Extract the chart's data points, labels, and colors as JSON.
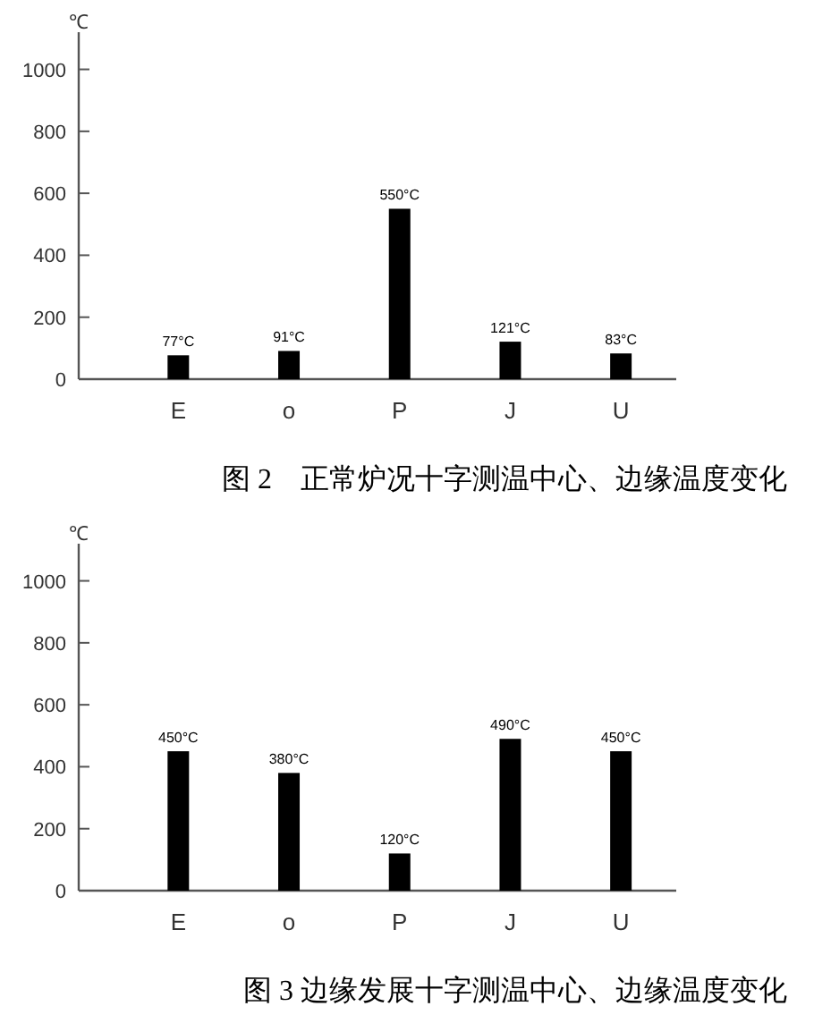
{
  "chart_data": [
    {
      "type": "bar",
      "title": "图 2　正常炉况十字测温中心、边缘温度变化",
      "ylabel": "℃",
      "categories": [
        "E",
        "o",
        "P",
        "J",
        "U"
      ],
      "values": [
        77,
        91,
        550,
        121,
        83
      ],
      "value_labels": [
        "77°C",
        "91°C",
        "550°C",
        "121°C",
        "83°C"
      ],
      "color": "#000000",
      "ylim": [
        0,
        1120
      ],
      "yticks": [
        0,
        200,
        400,
        600,
        800,
        1000
      ],
      "grid": false
    },
    {
      "type": "bar",
      "title": "图 3 边缘发展十字测温中心、边缘温度变化",
      "ylabel": "℃",
      "categories": [
        "E",
        "o",
        "P",
        "J",
        "U"
      ],
      "values": [
        450,
        380,
        120,
        490,
        450
      ],
      "value_labels": [
        "450°C",
        "380°C",
        "120°C",
        "490°C",
        "450°C"
      ],
      "color": "#000000",
      "ylim": [
        0,
        1120
      ],
      "yticks": [
        0,
        200,
        400,
        600,
        800,
        1000
      ],
      "grid": false
    }
  ]
}
